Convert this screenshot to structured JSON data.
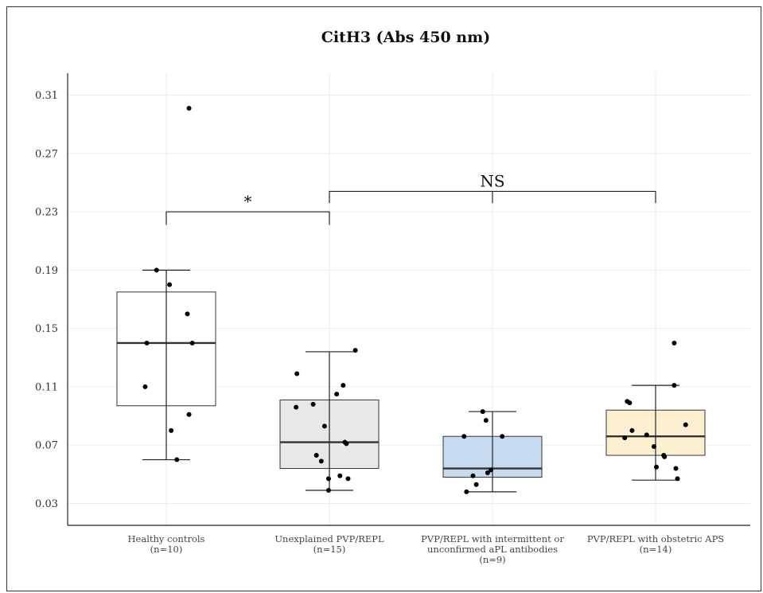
{
  "chart_data": {
    "type": "box",
    "title": "CitH3 (Abs 450 nm)",
    "xlabel": "",
    "ylabel": "",
    "ylim": [
      0.015,
      0.325
    ],
    "yticks": [
      0.03,
      0.07,
      0.11,
      0.15,
      0.19,
      0.23,
      0.27,
      0.31
    ],
    "grid": true,
    "categories": [
      {
        "label": [
          "Healthy controls",
          "(n=10)"
        ],
        "color": "#ffffff"
      },
      {
        "label": [
          "Unexplained PVP/REPL",
          "(n=15)"
        ],
        "color": "#e8e8e8"
      },
      {
        "label": [
          "PVP/REPL with intermittent or",
          "unconfirmed aPL antibodies",
          "(n=9)"
        ],
        "color": "#c6dbef"
      },
      {
        "label": [
          "PVP/REPL with obstetric APS",
          "(n=14)"
        ],
        "color": "#fdf0d0"
      }
    ],
    "boxes": [
      {
        "whisker_low": 0.06,
        "q1": 0.097,
        "median": 0.14,
        "q3": 0.175,
        "whisker_high": 0.19
      },
      {
        "whisker_low": 0.039,
        "q1": 0.054,
        "median": 0.072,
        "q3": 0.101,
        "whisker_high": 0.134
      },
      {
        "whisker_low": 0.038,
        "q1": 0.048,
        "median": 0.054,
        "q3": 0.076,
        "whisker_high": 0.093
      },
      {
        "whisker_low": 0.046,
        "q1": 0.063,
        "median": 0.076,
        "q3": 0.094,
        "whisker_high": 0.111
      }
    ],
    "points": [
      [
        {
          "dx": 0.28,
          "y": 0.301
        },
        {
          "dx": -0.12,
          "y": 0.19
        },
        {
          "dx": 0.04,
          "y": 0.18
        },
        {
          "dx": 0.26,
          "y": 0.16
        },
        {
          "dx": -0.24,
          "y": 0.14
        },
        {
          "dx": 0.32,
          "y": 0.14
        },
        {
          "dx": -0.26,
          "y": 0.11
        },
        {
          "dx": 0.28,
          "y": 0.091
        },
        {
          "dx": 0.06,
          "y": 0.08
        },
        {
          "dx": 0.13,
          "y": 0.06
        }
      ],
      [
        {
          "dx": 0.32,
          "y": 0.135
        },
        {
          "dx": -0.4,
          "y": 0.119
        },
        {
          "dx": 0.17,
          "y": 0.111
        },
        {
          "dx": 0.09,
          "y": 0.105
        },
        {
          "dx": -0.2,
          "y": 0.098
        },
        {
          "dx": -0.41,
          "y": 0.096
        },
        {
          "dx": -0.06,
          "y": 0.083
        },
        {
          "dx": 0.19,
          "y": 0.072
        },
        {
          "dx": 0.21,
          "y": 0.071
        },
        {
          "dx": -0.16,
          "y": 0.063
        },
        {
          "dx": -0.1,
          "y": 0.059
        },
        {
          "dx": 0.13,
          "y": 0.049
        },
        {
          "dx": -0.01,
          "y": 0.047
        },
        {
          "dx": 0.23,
          "y": 0.047
        },
        {
          "dx": -0.01,
          "y": 0.039
        }
      ],
      [
        {
          "dx": -0.12,
          "y": 0.093
        },
        {
          "dx": -0.08,
          "y": 0.087
        },
        {
          "dx": -0.35,
          "y": 0.076
        },
        {
          "dx": 0.12,
          "y": 0.076
        },
        {
          "dx": -0.02,
          "y": 0.053
        },
        {
          "dx": -0.06,
          "y": 0.051
        },
        {
          "dx": -0.24,
          "y": 0.049
        },
        {
          "dx": -0.2,
          "y": 0.043
        },
        {
          "dx": -0.32,
          "y": 0.038
        }
      ],
      [
        {
          "dx": 0.23,
          "y": 0.14
        },
        {
          "dx": 0.23,
          "y": 0.111
        },
        {
          "dx": -0.35,
          "y": 0.1
        },
        {
          "dx": -0.32,
          "y": 0.099
        },
        {
          "dx": 0.37,
          "y": 0.084
        },
        {
          "dx": -0.29,
          "y": 0.08
        },
        {
          "dx": -0.11,
          "y": 0.077
        },
        {
          "dx": -0.38,
          "y": 0.075
        },
        {
          "dx": -0.02,
          "y": 0.069
        },
        {
          "dx": 0.1,
          "y": 0.063
        },
        {
          "dx": 0.11,
          "y": 0.062
        },
        {
          "dx": 0.01,
          "y": 0.055
        },
        {
          "dx": 0.25,
          "y": 0.054
        },
        {
          "dx": 0.27,
          "y": 0.047
        }
      ]
    ],
    "annotations": [
      {
        "from": 0,
        "to": 1,
        "y": 0.23,
        "drop": 0.009,
        "label": "*"
      },
      {
        "from": 1,
        "to": 3,
        "y": 0.244,
        "drop": 0.008,
        "label": "NS"
      }
    ]
  }
}
